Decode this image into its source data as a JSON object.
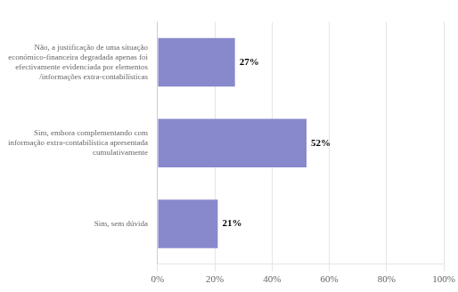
{
  "chart_data": {
    "type": "bar",
    "orientation": "horizontal",
    "categories": [
      "Sim, sem dúvida",
      "Sim, embora complementando com\ninformação extra-contabilística apresentada\ncumulativamente",
      "Não, a justificação de uma situação\neconómico-financeira degradada apenas foi\nefectivamente evidenciada por elementos\n/informações extra-contabilísticas"
    ],
    "values": [
      0.21,
      0.52,
      0.27
    ],
    "value_labels": [
      "21%",
      "52%",
      "27%"
    ],
    "data_labels": true,
    "color": "#8888cc",
    "xlim": [
      0,
      1.0
    ],
    "xticks": [
      {
        "value": 0,
        "label": "0%"
      },
      {
        "value": 0.2,
        "label": "20%"
      },
      {
        "value": 0.4,
        "label": "40%"
      },
      {
        "value": 0.6,
        "label": "60%"
      },
      {
        "value": 0.8,
        "label": "80%"
      },
      {
        "value": 1.0,
        "label": "100%"
      }
    ],
    "grid": true
  }
}
